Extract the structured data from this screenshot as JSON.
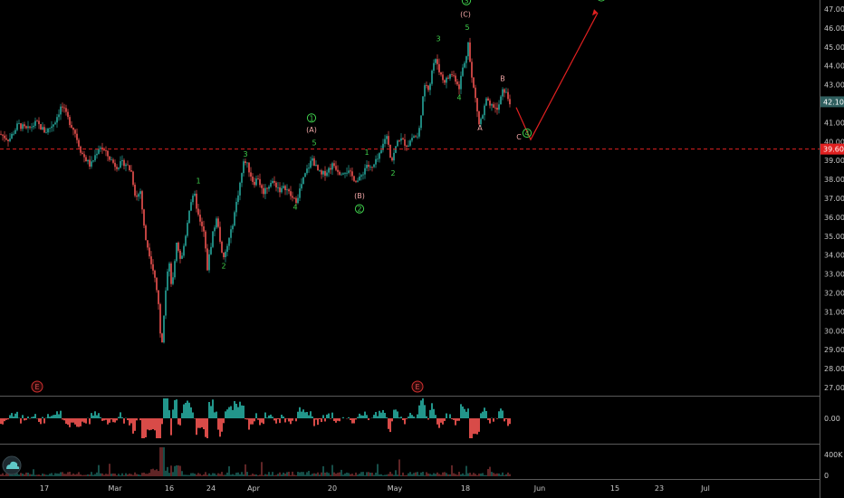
{
  "chart_data": {
    "type": "candlestick",
    "price_axis": {
      "ticks": [
        "47.00",
        "46.00",
        "45.00",
        "44.00",
        "43.00",
        "42.00",
        "41.00",
        "40.00",
        "39.00",
        "38.00",
        "37.00",
        "36.00",
        "35.00",
        "34.00",
        "33.00",
        "32.00",
        "31.00",
        "30.00",
        "29.00",
        "28.00",
        "27.00"
      ],
      "ylim": [
        26.5,
        47.5
      ]
    },
    "time_axis": {
      "ticks": [
        "17",
        "Mar",
        "16",
        "24",
        "Apr",
        "20",
        "May",
        "18",
        "Jun",
        "15",
        "23",
        "Jul"
      ]
    },
    "badges": [
      {
        "name": "last-price-badge",
        "label": "42.10",
        "value": 42.1,
        "color": "#2f5f5f"
      },
      {
        "name": "line-price-badge",
        "label": "39.60",
        "value": 39.6,
        "color": "#e02020"
      }
    ],
    "horizontal_line": {
      "value": 39.6,
      "color": "#e02020",
      "style": "dashed"
    },
    "price_path": [
      [
        0,
        40.4
      ],
      [
        10,
        40.1
      ],
      [
        20,
        40.9
      ],
      [
        30,
        40.6
      ],
      [
        40,
        41.0
      ],
      [
        50,
        40.5
      ],
      [
        60,
        41.0
      ],
      [
        68,
        41.9
      ],
      [
        75,
        41.2
      ],
      [
        82,
        40.6
      ],
      [
        90,
        39.4
      ],
      [
        100,
        38.7
      ],
      [
        110,
        39.8
      ],
      [
        118,
        39.3
      ],
      [
        128,
        38.7
      ],
      [
        138,
        38.9
      ],
      [
        145,
        38.4
      ],
      [
        150,
        37.0
      ],
      [
        155,
        37.4
      ],
      [
        160,
        35.0
      ],
      [
        165,
        34.1
      ],
      [
        170,
        33.0
      ],
      [
        175,
        31.5
      ],
      [
        178,
        28.8
      ],
      [
        182,
        31.7
      ],
      [
        186,
        33.8
      ],
      [
        190,
        32.2
      ],
      [
        195,
        34.5
      ],
      [
        200,
        33.6
      ],
      [
        205,
        35.1
      ],
      [
        210,
        36.8
      ],
      [
        215,
        37.1
      ],
      [
        220,
        35.8
      ],
      [
        225,
        35.2
      ],
      [
        229,
        33.3
      ],
      [
        235,
        35.2
      ],
      [
        240,
        36.0
      ],
      [
        246,
        33.6
      ],
      [
        250,
        34.3
      ],
      [
        255,
        35.2
      ],
      [
        260,
        36.5
      ],
      [
        265,
        37.8
      ],
      [
        270,
        39.1
      ],
      [
        275,
        38.5
      ],
      [
        280,
        37.8
      ],
      [
        285,
        38.1
      ],
      [
        290,
        37.3
      ],
      [
        295,
        37.6
      ],
      [
        300,
        37.9
      ],
      [
        305,
        37.7
      ],
      [
        310,
        37.4
      ],
      [
        315,
        37.6
      ],
      [
        320,
        37.2
      ],
      [
        326,
        36.8
      ],
      [
        330,
        37.3
      ],
      [
        335,
        38.0
      ],
      [
        340,
        38.6
      ],
      [
        345,
        39.1
      ],
      [
        350,
        38.5
      ],
      [
        355,
        38.2
      ],
      [
        360,
        38.4
      ],
      [
        368,
        38.8
      ],
      [
        375,
        38.4
      ],
      [
        382,
        38.5
      ],
      [
        390,
        38.1
      ],
      [
        396,
        37.9
      ],
      [
        400,
        38.3
      ],
      [
        405,
        38.8
      ],
      [
        410,
        38.5
      ],
      [
        415,
        38.9
      ],
      [
        420,
        39.3
      ],
      [
        425,
        40.2
      ],
      [
        428,
        40.3
      ],
      [
        432,
        38.9
      ],
      [
        436,
        39.5
      ],
      [
        440,
        40.2
      ],
      [
        445,
        40.0
      ],
      [
        450,
        39.8
      ],
      [
        456,
        40.3
      ],
      [
        462,
        40.2
      ],
      [
        466,
        42.0
      ],
      [
        470,
        43.1
      ],
      [
        474,
        42.8
      ],
      [
        478,
        44.1
      ],
      [
        482,
        44.3
      ],
      [
        486,
        43.6
      ],
      [
        490,
        43.2
      ],
      [
        494,
        43.3
      ],
      [
        498,
        43.6
      ],
      [
        502,
        43.4
      ],
      [
        507,
        42.9
      ],
      [
        511,
        43.9
      ],
      [
        514,
        44.2
      ],
      [
        517,
        45.4
      ],
      [
        520,
        43.6
      ],
      [
        523,
        42.8
      ],
      [
        526,
        42.0
      ],
      [
        529,
        40.9
      ],
      [
        533,
        41.4
      ],
      [
        537,
        42.2
      ],
      [
        541,
        41.8
      ],
      [
        545,
        41.9
      ],
      [
        549,
        41.6
      ],
      [
        553,
        42.3
      ],
      [
        556,
        42.8
      ],
      [
        560,
        42.4
      ],
      [
        563,
        42.1
      ]
    ],
    "forecast_path": [
      [
        570,
        41.8
      ],
      [
        586,
        40.1
      ],
      [
        660,
        46.8
      ]
    ],
    "oscillator": {
      "zero_label": "0.00"
    },
    "volume": {
      "max_label": "400K",
      "zero_label": "0"
    },
    "wave_labels": [
      {
        "text": "3",
        "x": 271,
        "y": 39.2,
        "color": "green"
      },
      {
        "text": "1",
        "x": 219,
        "y": 37.8,
        "color": "green"
      },
      {
        "text": "2",
        "x": 247,
        "y": 33.3,
        "color": "green"
      },
      {
        "text": "4",
        "x": 326,
        "y": 36.4,
        "color": "green"
      },
      {
        "text": "1",
        "x": 344,
        "y": 41.1,
        "color": "green",
        "circled": true
      },
      {
        "text": "(A)",
        "x": 344,
        "y": 40.5,
        "color": "pink"
      },
      {
        "text": "5",
        "x": 347,
        "y": 39.8,
        "color": "green"
      },
      {
        "text": "1",
        "x": 405,
        "y": 39.3,
        "color": "green"
      },
      {
        "text": "(B)",
        "x": 397,
        "y": 37.0,
        "color": "pink"
      },
      {
        "text": "2",
        "x": 397,
        "y": 36.3,
        "color": "green",
        "circled": true
      },
      {
        "text": "2",
        "x": 434,
        "y": 38.2,
        "color": "green"
      },
      {
        "text": "3",
        "x": 484,
        "y": 45.3,
        "color": "green"
      },
      {
        "text": "3",
        "x": 515,
        "y": 47.3,
        "color": "green",
        "circled": true
      },
      {
        "text": "(C)",
        "x": 514,
        "y": 46.6,
        "color": "pink"
      },
      {
        "text": "5",
        "x": 516,
        "y": 45.9,
        "color": "green"
      },
      {
        "text": "4",
        "x": 507,
        "y": 42.2,
        "color": "green"
      },
      {
        "text": "A",
        "x": 530,
        "y": 40.6,
        "color": "pink"
      },
      {
        "text": "B",
        "x": 555,
        "y": 43.2,
        "color": "pink"
      },
      {
        "text": "C",
        "x": 573,
        "y": 40.1,
        "color": "pink"
      },
      {
        "text": "4",
        "x": 582,
        "y": 40.3,
        "color": "green",
        "circled": true
      },
      {
        "text": "5",
        "x": 664,
        "y": 47.5,
        "color": "green",
        "circled": true
      }
    ],
    "event_markers": [
      {
        "label": "E",
        "x": 41
      },
      {
        "label": "E",
        "x": 461
      }
    ],
    "colors": {
      "up": "#26a69a",
      "down": "#ef5350",
      "wave_green": "#3fcf4c",
      "wave_pink": "#f2a7a7",
      "forecast": "#e02020"
    }
  }
}
